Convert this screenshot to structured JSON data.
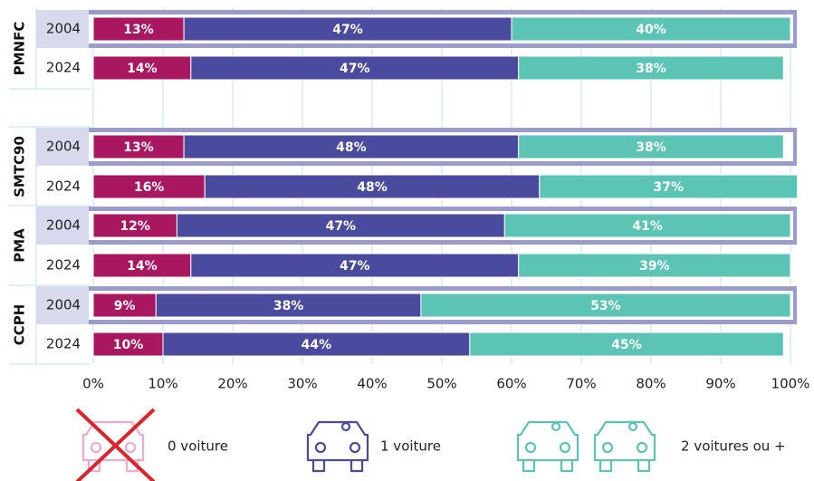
{
  "chart_data": {
    "type": "bar",
    "orientation": "horizontal",
    "stacked": true,
    "groups": [
      "PMNFC",
      "SMTC90",
      "PMA",
      "CCPH"
    ],
    "categories": [
      "2004",
      "2024",
      "2004",
      "2024",
      "2004",
      "2024",
      "2004",
      "2024"
    ],
    "series": [
      {
        "name": "0 voiture",
        "color": "#a8175f",
        "values": [
          13,
          14,
          13,
          16,
          12,
          14,
          9,
          10
        ],
        "value_labels": [
          "13%",
          "14%",
          "13%",
          "16%",
          "12%",
          "14%",
          "9%",
          "10%"
        ]
      },
      {
        "name": "1 voiture",
        "color": "#4a4a9e",
        "values": [
          47,
          47,
          48,
          48,
          47,
          47,
          38,
          44
        ],
        "value_labels": [
          "47%",
          "47%",
          "48%",
          "48%",
          "47%",
          "47%",
          "38%",
          "44%"
        ]
      },
      {
        "name": "2 voitures ou +",
        "color": "#5bc4b4",
        "values": [
          40,
          38,
          38,
          37,
          41,
          39,
          53,
          45
        ],
        "value_labels": [
          "40%",
          "38%",
          "38%",
          "37%",
          "41%",
          "39%",
          "53%",
          "45%"
        ]
      }
    ],
    "xlim": [
      0,
      100
    ],
    "xticks": [
      {
        "value": 0,
        "label": "0%"
      },
      {
        "value": 10,
        "label": "10%"
      },
      {
        "value": 20,
        "label": "20%"
      },
      {
        "value": 30,
        "label": "30%"
      },
      {
        "value": 40,
        "label": "40%"
      },
      {
        "value": 50,
        "label": "50%"
      },
      {
        "value": 60,
        "label": "60%"
      },
      {
        "value": 70,
        "label": "70%"
      },
      {
        "value": 80,
        "label": "80%"
      },
      {
        "value": 90,
        "label": "90%"
      },
      {
        "value": 100,
        "label": "100%"
      }
    ],
    "grid": true
  }
}
